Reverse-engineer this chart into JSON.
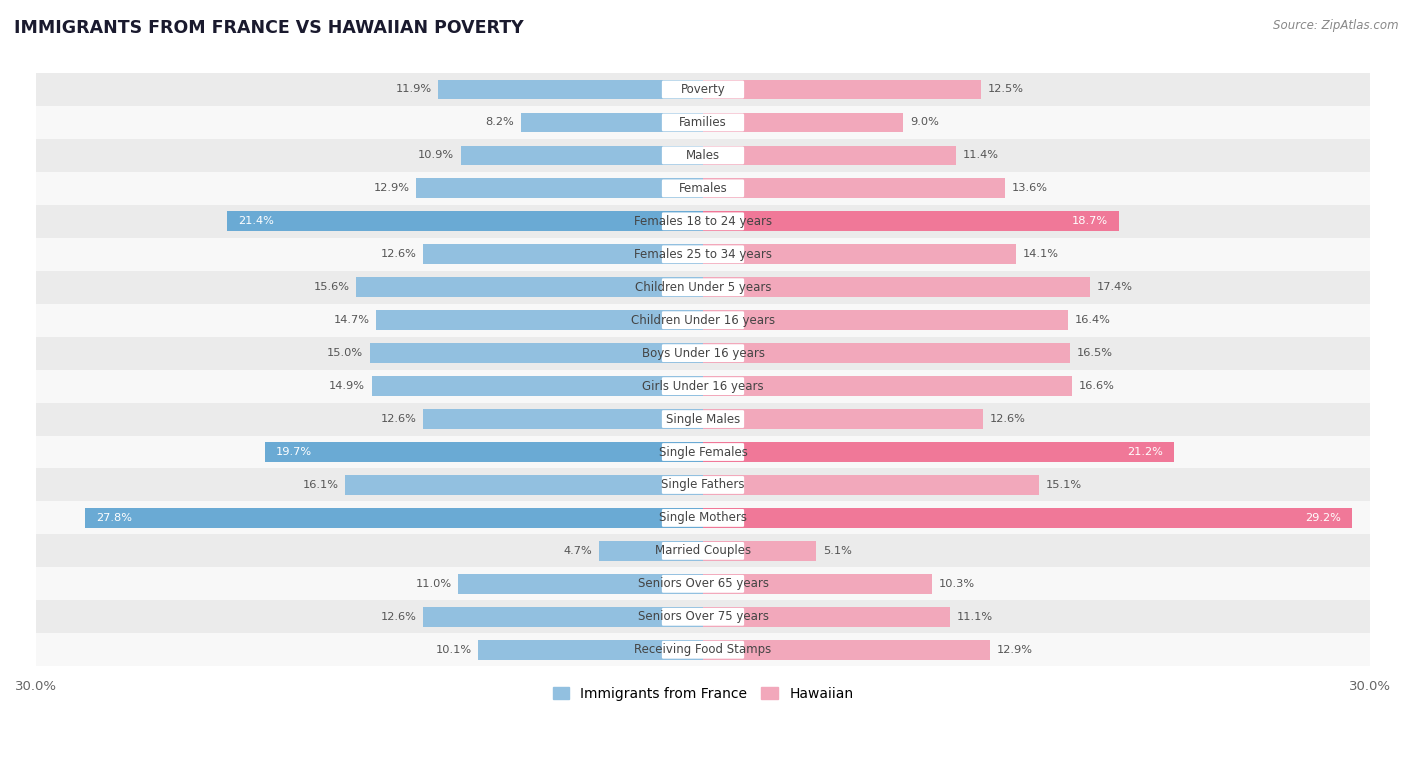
{
  "title": "IMMIGRANTS FROM FRANCE VS HAWAIIAN POVERTY",
  "source": "Source: ZipAtlas.com",
  "categories": [
    "Poverty",
    "Families",
    "Males",
    "Females",
    "Females 18 to 24 years",
    "Females 25 to 34 years",
    "Children Under 5 years",
    "Children Under 16 years",
    "Boys Under 16 years",
    "Girls Under 16 years",
    "Single Males",
    "Single Females",
    "Single Fathers",
    "Single Mothers",
    "Married Couples",
    "Seniors Over 65 years",
    "Seniors Over 75 years",
    "Receiving Food Stamps"
  ],
  "france_values": [
    11.9,
    8.2,
    10.9,
    12.9,
    21.4,
    12.6,
    15.6,
    14.7,
    15.0,
    14.9,
    12.6,
    19.7,
    16.1,
    27.8,
    4.7,
    11.0,
    12.6,
    10.1
  ],
  "hawaii_values": [
    12.5,
    9.0,
    11.4,
    13.6,
    18.7,
    14.1,
    17.4,
    16.4,
    16.5,
    16.6,
    12.6,
    21.2,
    15.1,
    29.2,
    5.1,
    10.3,
    11.1,
    12.9
  ],
  "france_color": "#92c0e0",
  "hawaii_color": "#f2a8bb",
  "france_highlight_color": "#6aaad4",
  "hawaii_highlight_color": "#f07898",
  "highlight_rows": [
    4,
    11,
    13
  ],
  "xlim": 30.0,
  "bg_color": "#ffffff",
  "row_bg_light": "#ebebeb",
  "row_bg_white": "#f8f8f8",
  "legend_france": "Immigrants from France",
  "legend_hawaii": "Hawaiian",
  "bar_height": 0.6,
  "label_bg": "#ffffff"
}
